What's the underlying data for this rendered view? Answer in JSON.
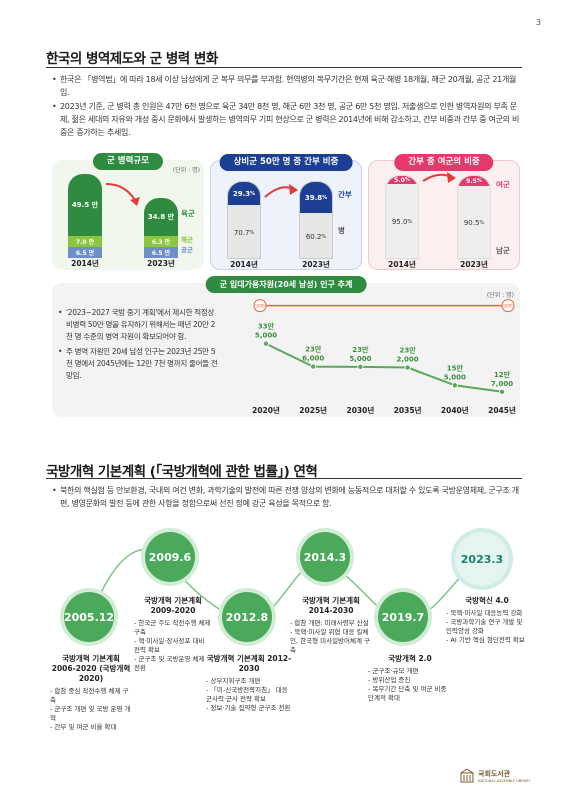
{
  "page_number": "3",
  "section1": {
    "title": "한국의 병역제도와 군 병력 변화",
    "bullets": [
      "한국은 「병역법」에 따라 18세 이상 남성에게 군 복무 의무를 부과함. 현역병의 복무기간은 현재 육군·해병 18개월, 해군 20개월, 공군 21개월임.",
      "2023년 기준, 군 병력 총 인원은 47만 6천 명으로 육군 34만 8천 명, 해군 6만 3천 명, 공군 6만 5천 명임. 저출생으로 인한 병역자원의 부족 문제, 젊은 세대의 자유와 개성 중시 문화에서 발생하는 병역의무 기피 현상으로 군 병력은 2014년에 비해 감소하고, 간부 비중과 간부 중 여군의 비중은 증가하는 추세임."
    ]
  },
  "card1": {
    "title": "군 병력규모",
    "unit": "(단위 : 명)",
    "years": [
      "2014년",
      "2023년"
    ],
    "bars": [
      {
        "army": "49.5 만",
        "navy": "7.0 만",
        "air": "6.5 만"
      },
      {
        "army": "34.8 만",
        "navy": "6.3 만",
        "air": "6.5 만"
      }
    ],
    "legend": {
      "army": "육군",
      "navy": "해군",
      "air": "공군"
    },
    "colors": {
      "army": "#2e8b3f",
      "navy": "#8cc63f",
      "air": "#6f8fc9"
    }
  },
  "card2": {
    "title": "상비군 50만 명 중 간부 비중",
    "years": [
      "2014년",
      "2023년"
    ],
    "bars": [
      {
        "officer": "29.3",
        "soldier": "70.7"
      },
      {
        "officer": "39.8",
        "soldier": "60.2"
      }
    ],
    "pct": "%",
    "legend": {
      "officer": "간부",
      "soldier": "병"
    },
    "colors": {
      "officer": "#1c3f94",
      "soldier": "#e6e6e6"
    }
  },
  "card3": {
    "title": "간부 중 여군의 비중",
    "years": [
      "2014년",
      "2023년"
    ],
    "bars": [
      {
        "female": "5.0",
        "male": "95.0"
      },
      {
        "female": "9.5",
        "male": "90.5"
      }
    ],
    "pct": "%",
    "legend": {
      "female": "여군",
      "male": "남군"
    },
    "colors": {
      "female": "#e23b6b",
      "male": "#eeeeee"
    }
  },
  "chart": {
    "title": "군 입대가용자원(20세 남성) 인구 추계",
    "unit": "(단위 : 명)",
    "line_label": "50만",
    "notes": [
      "'2023~2027 국방 중기 계획'에서 제시한 적정상비병력 50만 명을 유지하기 위해서는 매년 20만 2천 명 수준의 병역 자원이 확보되어야 함.",
      "주 병역 자원인 20세 남성 인구는 2023년 25만 5천 명에서 2045년에는 12만 7천 명까지 줄어들 전망임."
    ]
  },
  "chart_data": {
    "type": "line",
    "title": "군 입대가용자원(20세 남성) 인구 추계",
    "x": [
      "2020년",
      "2025년",
      "2030년",
      "2035년",
      "2040년",
      "2045년"
    ],
    "series": [
      {
        "values": [
          335000,
          236000,
          235000,
          232000,
          155000,
          127000
        ]
      }
    ],
    "value_labels": [
      [
        "33만",
        "5,000"
      ],
      [
        "23만",
        "6,000"
      ],
      [
        "23만",
        "5,000"
      ],
      [
        "23만",
        "2,000"
      ],
      [
        "15만",
        "5,000"
      ],
      [
        "12만",
        "7,000"
      ]
    ],
    "reference_line": {
      "label": "50만",
      "value": 500000
    },
    "ylim": [
      100000,
      520000
    ]
  },
  "section2": {
    "title": "국방개혁 기본계획 (「국방개혁에 관한 법률」) 연혁",
    "bullets": [
      "북한의 핵실험 등 안보환경, 국내외 여건 변화, 과학기술의 발전에 따른 전쟁 양상의 변화에 능동적으로 대처할 수 있도록 국방운영체제, 군구조 개편, 병영문화의 발전 등에 관한 사항을 정함으로써 선진 정예 강군 육성을 목적으로 함."
    ]
  },
  "timeline": [
    {
      "date": "2005.12",
      "title": "국방개혁 기본계획 2006-2020 (국방개혁 2020)",
      "items": [
        "합참 중심 작전수행 체제 구축",
        "군구조 개편 및 국방 운영 개혁",
        "간부 및 여군 비율 확대"
      ]
    },
    {
      "date": "2009.6",
      "title": "국방개혁 기본계획 2009-2020",
      "items": [
        "한국군 주도 작전수행 체제 구축",
        "핵·미사일·장사정포 대비 전력 확보",
        "군구조 및 국방운영 체제 전환"
      ]
    },
    {
      "date": "2012.8",
      "title": "국방개혁 기본계획 2012-2030",
      "items": [
        "상부지휘구조 개편",
        "「미-신국방전략지침」 대응 군사력·군사 전략 확보",
        "정보·기술 집약형 군구조 전환"
      ]
    },
    {
      "date": "2014.3",
      "title": "국방개혁 기본계획 2014-2030",
      "items": [
        "합참 개편: 미래사령부 신설",
        "북핵·미사일 위협 대응 킬체인, 한국형 미사일방어체계 구축"
      ]
    },
    {
      "date": "2019.7",
      "title": "국방개혁 2.0",
      "items": [
        "군구조·규모 개편",
        "방위산업 증진",
        "복무기간 단축 및 여군 비중 단계적 확대"
      ]
    },
    {
      "date": "2023.3",
      "title": "국방혁신 4.0",
      "items": [
        "북핵·미사일 대응능력 강화",
        "국방과학기술 연구 개발 및 인력양성 강화",
        "AI 기반 핵심 첨단전력 확보"
      ]
    }
  ],
  "logo": {
    "name": "국회도서관",
    "sub": "NATIONAL ASSEMBLY LIBRARY"
  }
}
